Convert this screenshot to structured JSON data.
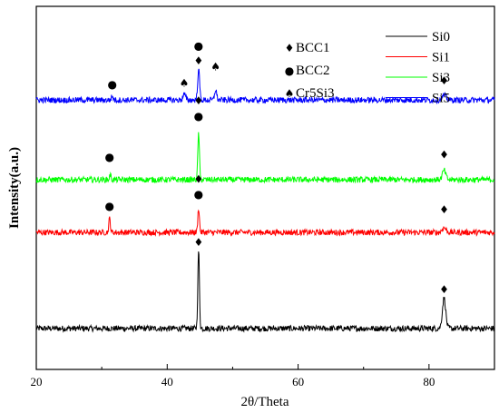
{
  "chart_data": {
    "type": "line",
    "title": "",
    "xlabel": "2θ/Theta",
    "ylabel": "Intensity(a.u.)",
    "xlim": [
      20,
      90
    ],
    "xticks": [
      20,
      40,
      60,
      80
    ],
    "grid": false,
    "legend_position": "top-right",
    "series": [
      {
        "name": "Si0",
        "color": "#000000",
        "baseline": 0,
        "noise": 0.25,
        "peaks": [
          {
            "x": 44.8,
            "height": 6.7,
            "width": 0.12
          },
          {
            "x": 82.3,
            "height": 2.6,
            "width": 0.25
          }
        ]
      },
      {
        "name": "Si1",
        "color": "#ff0000",
        "baseline": 8.2,
        "noise": 0.25,
        "peaks": [
          {
            "x": 31.2,
            "height": 1.2,
            "width": 0.12
          },
          {
            "x": 44.8,
            "height": 2.1,
            "width": 0.12
          },
          {
            "x": 82.3,
            "height": 0.4,
            "width": 0.3
          }
        ]
      },
      {
        "name": "Si3",
        "color": "#00ff00",
        "baseline": 12.7,
        "noise": 0.25,
        "peaks": [
          {
            "x": 31.3,
            "height": 0.4,
            "width": 0.12
          },
          {
            "x": 44.8,
            "height": 4.0,
            "width": 0.12
          },
          {
            "x": 82.3,
            "height": 0.8,
            "width": 0.25
          }
        ]
      },
      {
        "name": "Si5",
        "color": "#0000ff",
        "baseline": 19.5,
        "noise": 0.25,
        "peaks": [
          {
            "x": 31.6,
            "height": 0.3,
            "width": 0.15
          },
          {
            "x": 42.6,
            "height": 0.5,
            "width": 0.2
          },
          {
            "x": 44.8,
            "height": 2.6,
            "width": 0.15
          },
          {
            "x": 47.4,
            "height": 0.9,
            "width": 0.15
          },
          {
            "x": 82.3,
            "height": 0.4,
            "width": 0.3
          }
        ]
      }
    ],
    "phase_legend": [
      {
        "symbol": "♦",
        "label": "BCC1"
      },
      {
        "symbol": "●",
        "label": "BCC2"
      },
      {
        "symbol": "♠",
        "label": "Cr5Si3"
      }
    ],
    "annotations": [
      {
        "symbol": "♦",
        "x": 44.8,
        "y": 7.3
      },
      {
        "symbol": "♦",
        "x": 82.3,
        "y": 3.3
      },
      {
        "symbol": "●",
        "x": 31.2,
        "y": 10.4
      },
      {
        "symbol": "●",
        "x": 44.8,
        "y": 11.4
      },
      {
        "symbol": "♦",
        "x": 44.8,
        "y": 12.7
      },
      {
        "symbol": "♦",
        "x": 82.3,
        "y": 10.1
      },
      {
        "symbol": "●",
        "x": 31.2,
        "y": 14.6
      },
      {
        "symbol": "●",
        "x": 44.8,
        "y": 18.1
      },
      {
        "symbol": "♦",
        "x": 44.8,
        "y": 19.4
      },
      {
        "symbol": "♦",
        "x": 82.3,
        "y": 14.8
      },
      {
        "symbol": "●",
        "x": 31.6,
        "y": 20.8
      },
      {
        "symbol": "♠",
        "x": 42.6,
        "y": 20.9
      },
      {
        "symbol": "♦",
        "x": 44.8,
        "y": 22.8
      },
      {
        "symbol": "●",
        "x": 44.8,
        "y": 24.1
      },
      {
        "symbol": "♠",
        "x": 47.4,
        "y": 22.3
      },
      {
        "symbol": "♦",
        "x": 82.3,
        "y": 21.1
      }
    ]
  }
}
